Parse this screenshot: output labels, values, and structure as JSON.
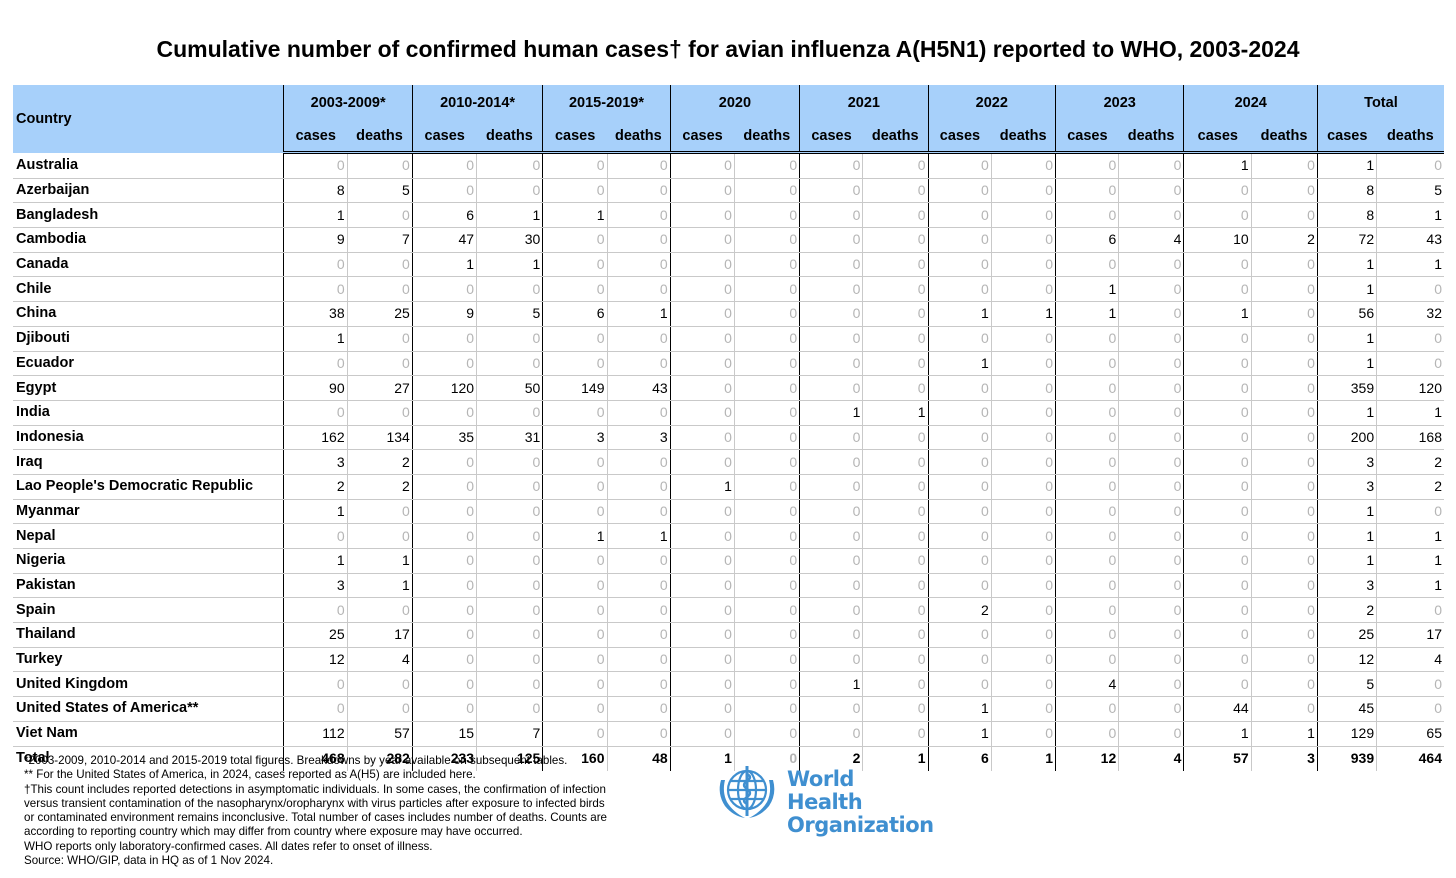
{
  "title": "Cumulative number of confirmed human cases† for avian influenza A(H5N1) reported to WHO, 2003-2024",
  "header": {
    "country_label": "Country",
    "periods": [
      "2003-2009*",
      "2010-2014*",
      "2015-2019*",
      "2020",
      "2021",
      "2022",
      "2023",
      "2024",
      "Total"
    ],
    "cases_label": "cases",
    "deaths_label": "deaths"
  },
  "rows": [
    {
      "country": "Australia",
      "values": [
        0,
        0,
        0,
        0,
        0,
        0,
        0,
        0,
        0,
        0,
        0,
        0,
        0,
        0,
        1,
        0,
        1,
        0
      ]
    },
    {
      "country": "Azerbaijan",
      "values": [
        8,
        5,
        0,
        0,
        0,
        0,
        0,
        0,
        0,
        0,
        0,
        0,
        0,
        0,
        0,
        0,
        8,
        5
      ]
    },
    {
      "country": "Bangladesh",
      "values": [
        1,
        0,
        6,
        1,
        1,
        0,
        0,
        0,
        0,
        0,
        0,
        0,
        0,
        0,
        0,
        0,
        8,
        1
      ]
    },
    {
      "country": "Cambodia",
      "values": [
        9,
        7,
        47,
        30,
        0,
        0,
        0,
        0,
        0,
        0,
        0,
        0,
        6,
        4,
        10,
        2,
        72,
        43
      ]
    },
    {
      "country": "Canada",
      "values": [
        0,
        0,
        1,
        1,
        0,
        0,
        0,
        0,
        0,
        0,
        0,
        0,
        0,
        0,
        0,
        0,
        1,
        1
      ]
    },
    {
      "country": "Chile",
      "values": [
        0,
        0,
        0,
        0,
        0,
        0,
        0,
        0,
        0,
        0,
        0,
        0,
        1,
        0,
        0,
        0,
        1,
        0
      ]
    },
    {
      "country": "China",
      "values": [
        38,
        25,
        9,
        5,
        6,
        1,
        0,
        0,
        0,
        0,
        1,
        1,
        1,
        0,
        1,
        0,
        56,
        32
      ]
    },
    {
      "country": "Djibouti",
      "values": [
        1,
        0,
        0,
        0,
        0,
        0,
        0,
        0,
        0,
        0,
        0,
        0,
        0,
        0,
        0,
        0,
        1,
        0
      ]
    },
    {
      "country": "Ecuador",
      "values": [
        0,
        0,
        0,
        0,
        0,
        0,
        0,
        0,
        0,
        0,
        1,
        0,
        0,
        0,
        0,
        0,
        1,
        0
      ]
    },
    {
      "country": "Egypt",
      "values": [
        90,
        27,
        120,
        50,
        149,
        43,
        0,
        0,
        0,
        0,
        0,
        0,
        0,
        0,
        0,
        0,
        359,
        120
      ]
    },
    {
      "country": "India",
      "values": [
        0,
        0,
        0,
        0,
        0,
        0,
        0,
        0,
        1,
        1,
        0,
        0,
        0,
        0,
        0,
        0,
        1,
        1
      ]
    },
    {
      "country": "Indonesia",
      "values": [
        162,
        134,
        35,
        31,
        3,
        3,
        0,
        0,
        0,
        0,
        0,
        0,
        0,
        0,
        0,
        0,
        200,
        168
      ]
    },
    {
      "country": "Iraq",
      "values": [
        3,
        2,
        0,
        0,
        0,
        0,
        0,
        0,
        0,
        0,
        0,
        0,
        0,
        0,
        0,
        0,
        3,
        2
      ]
    },
    {
      "country": "Lao People's Democratic Republic",
      "values": [
        2,
        2,
        0,
        0,
        0,
        0,
        1,
        0,
        0,
        0,
        0,
        0,
        0,
        0,
        0,
        0,
        3,
        2
      ]
    },
    {
      "country": "Myanmar",
      "values": [
        1,
        0,
        0,
        0,
        0,
        0,
        0,
        0,
        0,
        0,
        0,
        0,
        0,
        0,
        0,
        0,
        1,
        0
      ]
    },
    {
      "country": "Nepal",
      "values": [
        0,
        0,
        0,
        0,
        1,
        1,
        0,
        0,
        0,
        0,
        0,
        0,
        0,
        0,
        0,
        0,
        1,
        1
      ]
    },
    {
      "country": "Nigeria",
      "values": [
        1,
        1,
        0,
        0,
        0,
        0,
        0,
        0,
        0,
        0,
        0,
        0,
        0,
        0,
        0,
        0,
        1,
        1
      ]
    },
    {
      "country": "Pakistan",
      "values": [
        3,
        1,
        0,
        0,
        0,
        0,
        0,
        0,
        0,
        0,
        0,
        0,
        0,
        0,
        0,
        0,
        3,
        1
      ]
    },
    {
      "country": "Spain",
      "values": [
        0,
        0,
        0,
        0,
        0,
        0,
        0,
        0,
        0,
        0,
        2,
        0,
        0,
        0,
        0,
        0,
        2,
        0
      ]
    },
    {
      "country": "Thailand",
      "values": [
        25,
        17,
        0,
        0,
        0,
        0,
        0,
        0,
        0,
        0,
        0,
        0,
        0,
        0,
        0,
        0,
        25,
        17
      ]
    },
    {
      "country": "Turkey",
      "values": [
        12,
        4,
        0,
        0,
        0,
        0,
        0,
        0,
        0,
        0,
        0,
        0,
        0,
        0,
        0,
        0,
        12,
        4
      ]
    },
    {
      "country": "United Kingdom",
      "values": [
        0,
        0,
        0,
        0,
        0,
        0,
        0,
        0,
        1,
        0,
        0,
        0,
        4,
        0,
        0,
        0,
        5,
        0
      ]
    },
    {
      "country": "United States of America**",
      "values": [
        0,
        0,
        0,
        0,
        0,
        0,
        0,
        0,
        0,
        0,
        1,
        0,
        0,
        0,
        44,
        0,
        45,
        0
      ]
    },
    {
      "country": "Viet Nam",
      "values": [
        112,
        57,
        15,
        7,
        0,
        0,
        0,
        0,
        0,
        0,
        1,
        0,
        0,
        0,
        1,
        1,
        129,
        65
      ]
    }
  ],
  "total_row": {
    "label": "Total",
    "values": [
      468,
      282,
      233,
      125,
      160,
      48,
      1,
      0,
      2,
      1,
      6,
      1,
      12,
      4,
      57,
      3,
      939,
      464
    ]
  },
  "footnotes": [
    "*2003-2009, 2010-2014 and 2015-2019 total figures. Breakdowns by year available on subsequent tables.",
    "** For the United States of America, in 2024, cases reported as A(H5) are included here.",
    "†This count includes reported detections in asymptomatic individuals. In some cases, the confirmation of infection",
    "versus transient contamination of the nasopharynx/oropharynx with virus particles after exposure to infected birds",
    "or contaminated environment remains inconclusive. Total number of cases includes number of deaths. Counts are",
    "according to reporting country which may differ from country where exposure may have occurred.",
    "WHO reports only laboratory-confirmed cases. All dates refer to onset of illness.",
    "Source: WHO/GIP, data in HQ as of 1 Nov 2024."
  ],
  "logo": {
    "line1": "World Health",
    "line2": "Organization"
  },
  "colors": {
    "header_bg": "#a7d0fa",
    "zero_text": "#b5b5b5",
    "logo_blue": "#3f8fd0"
  }
}
